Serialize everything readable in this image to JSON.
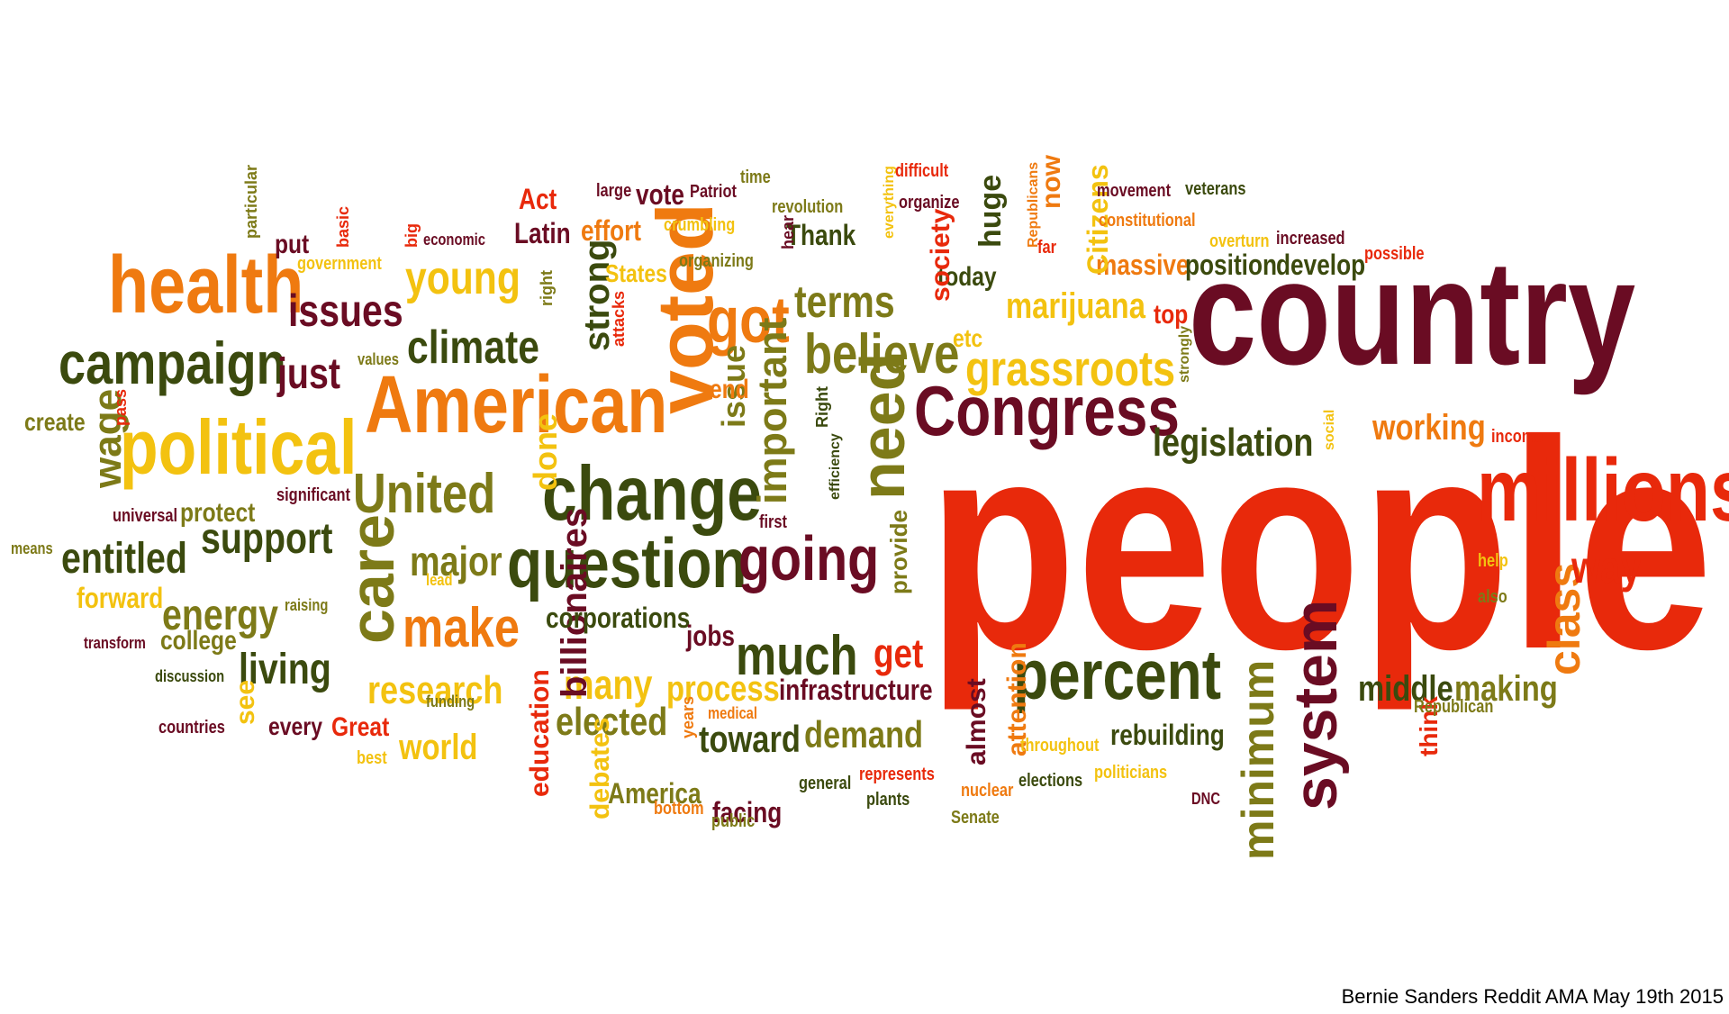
{
  "caption": "Bernie Sanders Reddit AMA May 19th 2015",
  "palette": {
    "maroon": "#6a0c23",
    "dark_green": "#3b4a0e",
    "olive": "#7d7a18",
    "orange": "#ef7a10",
    "red": "#e8290b",
    "yellow": "#f3c210"
  },
  "words": [
    {
      "text": "people",
      "color": "red"
    },
    {
      "text": "country",
      "color": "maroon"
    },
    {
      "text": "millions",
      "color": "red"
    },
    {
      "text": "American",
      "color": "orange"
    },
    {
      "text": "change",
      "color": "dark_green"
    },
    {
      "text": "health",
      "color": "orange"
    },
    {
      "text": "political",
      "color": "yellow"
    },
    {
      "text": "question",
      "color": "dark_green"
    },
    {
      "text": "voted",
      "color": "orange"
    },
    {
      "text": "Congress",
      "color": "maroon"
    },
    {
      "text": "percent",
      "color": "dark_green"
    },
    {
      "text": "system",
      "color": "maroon"
    },
    {
      "text": "campaign",
      "color": "dark_green"
    },
    {
      "text": "going",
      "color": "maroon"
    },
    {
      "text": "care",
      "color": "olive"
    },
    {
      "text": "need",
      "color": "olive"
    },
    {
      "text": "got",
      "color": "orange"
    },
    {
      "text": "believe",
      "color": "olive"
    },
    {
      "text": "United",
      "color": "olive"
    },
    {
      "text": "make",
      "color": "orange"
    },
    {
      "text": "much",
      "color": "dark_green"
    },
    {
      "text": "grassroots",
      "color": "yellow"
    },
    {
      "text": "class",
      "color": "orange"
    },
    {
      "text": "climate",
      "color": "dark_green"
    },
    {
      "text": "young",
      "color": "yellow"
    },
    {
      "text": "issues",
      "color": "maroon"
    },
    {
      "text": "terms",
      "color": "olive"
    },
    {
      "text": "way",
      "color": "red"
    },
    {
      "text": "minimum",
      "color": "olive"
    },
    {
      "text": "important",
      "color": "olive"
    },
    {
      "text": "support",
      "color": "dark_green"
    },
    {
      "text": "entitled",
      "color": "dark_green"
    },
    {
      "text": "energy",
      "color": "olive"
    },
    {
      "text": "living",
      "color": "dark_green"
    },
    {
      "text": "major",
      "color": "olive"
    },
    {
      "text": "just",
      "color": "maroon"
    },
    {
      "text": "legislation",
      "color": "dark_green"
    },
    {
      "text": "working",
      "color": "orange"
    },
    {
      "text": "research",
      "color": "yellow"
    },
    {
      "text": "many",
      "color": "yellow"
    },
    {
      "text": "elected",
      "color": "olive"
    },
    {
      "text": "get",
      "color": "red"
    },
    {
      "text": "wage",
      "color": "olive"
    },
    {
      "text": "middle",
      "color": "dark_green"
    },
    {
      "text": "making",
      "color": "olive"
    },
    {
      "text": "marijuana",
      "color": "yellow"
    },
    {
      "text": "toward",
      "color": "dark_green"
    },
    {
      "text": "demand",
      "color": "olive"
    },
    {
      "text": "process",
      "color": "yellow"
    },
    {
      "text": "world",
      "color": "yellow"
    },
    {
      "text": "billionaires",
      "color": "maroon"
    },
    {
      "text": "infrastructure",
      "color": "maroon"
    },
    {
      "text": "rebuilding",
      "color": "dark_green"
    },
    {
      "text": "corporations",
      "color": "dark_green"
    },
    {
      "text": "strong",
      "color": "dark_green"
    },
    {
      "text": "massive",
      "color": "orange"
    },
    {
      "text": "position",
      "color": "dark_green"
    },
    {
      "text": "develop",
      "color": "dark_green"
    },
    {
      "text": "issue",
      "color": "olive"
    },
    {
      "text": "done",
      "color": "yellow"
    },
    {
      "text": "Latin",
      "color": "maroon"
    },
    {
      "text": "Act",
      "color": "red"
    },
    {
      "text": "effort",
      "color": "orange"
    },
    {
      "text": "vote",
      "color": "maroon"
    },
    {
      "text": "Thank",
      "color": "dark_green"
    },
    {
      "text": "today",
      "color": "dark_green"
    },
    {
      "text": "huge",
      "color": "dark_green"
    },
    {
      "text": "society",
      "color": "red"
    },
    {
      "text": "top",
      "color": "red"
    },
    {
      "text": "Citizens",
      "color": "yellow"
    },
    {
      "text": "now",
      "color": "orange"
    },
    {
      "text": "facing",
      "color": "maroon"
    },
    {
      "text": "America",
      "color": "olive"
    },
    {
      "text": "education",
      "color": "red"
    },
    {
      "text": "debates",
      "color": "yellow"
    },
    {
      "text": "almost",
      "color": "maroon"
    },
    {
      "text": "attention",
      "color": "orange"
    },
    {
      "text": "think",
      "color": "red"
    },
    {
      "text": "jobs",
      "color": "maroon"
    },
    {
      "text": "provide",
      "color": "olive"
    },
    {
      "text": "forward",
      "color": "yellow"
    },
    {
      "text": "college",
      "color": "olive"
    },
    {
      "text": "protect",
      "color": "olive"
    },
    {
      "text": "see",
      "color": "yellow"
    },
    {
      "text": "every",
      "color": "maroon"
    },
    {
      "text": "Great",
      "color": "red"
    },
    {
      "text": "put",
      "color": "maroon"
    },
    {
      "text": "end",
      "color": "orange"
    },
    {
      "text": "etc",
      "color": "yellow"
    },
    {
      "text": "States",
      "color": "yellow"
    },
    {
      "text": "create",
      "color": "olive"
    },
    {
      "text": "particular",
      "color": "olive"
    },
    {
      "text": "basic",
      "color": "red"
    },
    {
      "text": "big",
      "color": "red"
    },
    {
      "text": "economic",
      "color": "maroon"
    },
    {
      "text": "government",
      "color": "yellow"
    },
    {
      "text": "pass",
      "color": "red"
    },
    {
      "text": "values",
      "color": "olive"
    },
    {
      "text": "right",
      "color": "olive"
    },
    {
      "text": "attacks",
      "color": "red"
    },
    {
      "text": "large",
      "color": "maroon"
    },
    {
      "text": "Patriot",
      "color": "maroon"
    },
    {
      "text": "crumbling",
      "color": "yellow"
    },
    {
      "text": "organizing",
      "color": "olive"
    },
    {
      "text": "time",
      "color": "olive"
    },
    {
      "text": "revolution",
      "color": "olive"
    },
    {
      "text": "hear",
      "color": "maroon"
    },
    {
      "text": "everything",
      "color": "yellow"
    },
    {
      "text": "difficult",
      "color": "red"
    },
    {
      "text": "organize",
      "color": "maroon"
    },
    {
      "text": "Republicans",
      "color": "orange"
    },
    {
      "text": "far",
      "color": "red"
    },
    {
      "text": "movement",
      "color": "maroon"
    },
    {
      "text": "veterans",
      "color": "dark_green"
    },
    {
      "text": "constitutional",
      "color": "orange"
    },
    {
      "text": "overturn",
      "color": "yellow"
    },
    {
      "text": "increased",
      "color": "maroon"
    },
    {
      "text": "possible",
      "color": "red"
    },
    {
      "text": "strongly",
      "color": "olive"
    },
    {
      "text": "social",
      "color": "yellow"
    },
    {
      "text": "income",
      "color": "red"
    },
    {
      "text": "help",
      "color": "yellow"
    },
    {
      "text": "also",
      "color": "olive"
    },
    {
      "text": "Right",
      "color": "dark_green"
    },
    {
      "text": "efficiency",
      "color": "dark_green"
    },
    {
      "text": "first",
      "color": "maroon"
    },
    {
      "text": "significant",
      "color": "maroon"
    },
    {
      "text": "universal",
      "color": "maroon"
    },
    {
      "text": "means",
      "color": "olive"
    },
    {
      "text": "lead",
      "color": "yellow"
    },
    {
      "text": "raising",
      "color": "olive"
    },
    {
      "text": "transform",
      "color": "maroon"
    },
    {
      "text": "discussion",
      "color": "dark_green"
    },
    {
      "text": "countries",
      "color": "maroon"
    },
    {
      "text": "funding",
      "color": "olive"
    },
    {
      "text": "best",
      "color": "yellow"
    },
    {
      "text": "years",
      "color": "orange"
    },
    {
      "text": "medical",
      "color": "orange"
    },
    {
      "text": "bottom",
      "color": "orange"
    },
    {
      "text": "public",
      "color": "olive"
    },
    {
      "text": "general",
      "color": "dark_green"
    },
    {
      "text": "represents",
      "color": "red"
    },
    {
      "text": "plants",
      "color": "dark_green"
    },
    {
      "text": "nuclear",
      "color": "orange"
    },
    {
      "text": "Senate",
      "color": "olive"
    },
    {
      "text": "throughout",
      "color": "yellow"
    },
    {
      "text": "elections",
      "color": "dark_green"
    },
    {
      "text": "politicians",
      "color": "yellow"
    },
    {
      "text": "DNC",
      "color": "maroon"
    },
    {
      "text": "Republican",
      "color": "olive"
    }
  ]
}
